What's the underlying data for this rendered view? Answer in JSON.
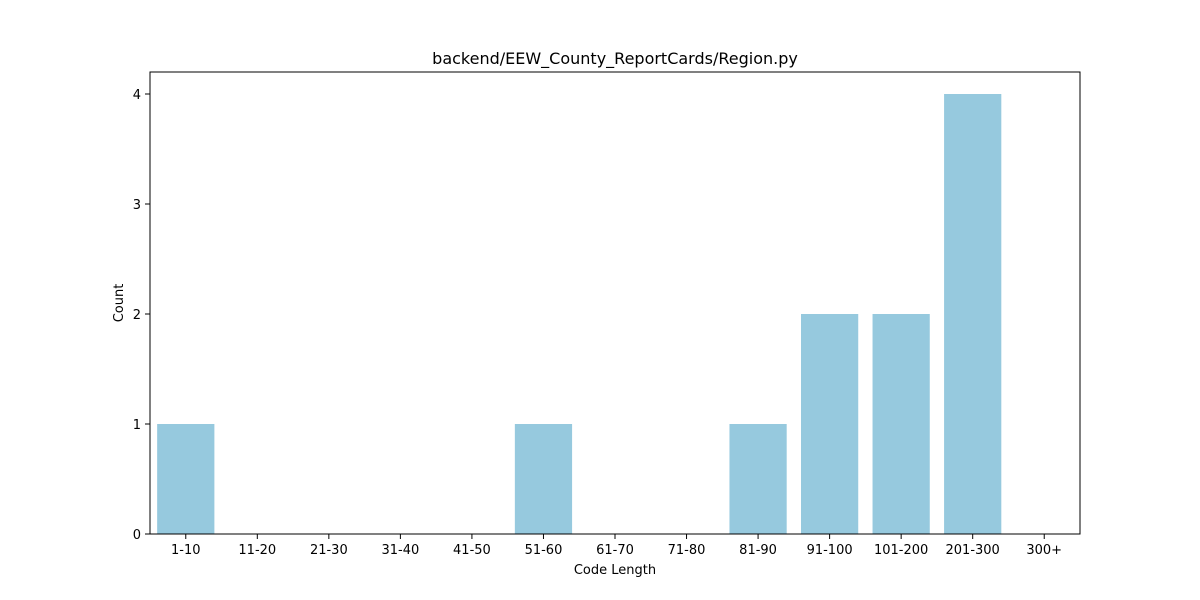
{
  "chart_data": {
    "type": "bar",
    "title": "backend/EEW_County_ReportCards/Region.py",
    "xlabel": "Code Length",
    "ylabel": "Count",
    "categories": [
      "1-10",
      "11-20",
      "21-30",
      "31-40",
      "41-50",
      "51-60",
      "61-70",
      "71-80",
      "81-90",
      "91-100",
      "101-200",
      "201-300",
      "300+"
    ],
    "values": [
      1,
      0,
      0,
      0,
      0,
      1,
      0,
      0,
      1,
      2,
      2,
      4,
      0
    ],
    "ylim": [
      0,
      4.2
    ],
    "yticks": [
      0,
      1,
      2,
      3,
      4
    ],
    "bar_color": "#96c9de",
    "grid": false
  }
}
